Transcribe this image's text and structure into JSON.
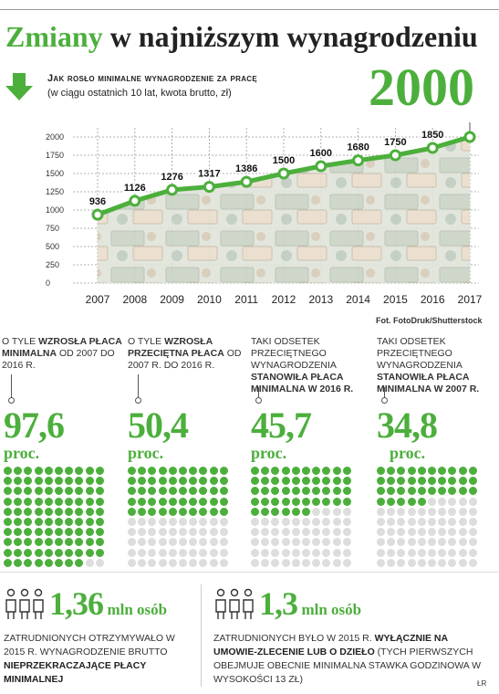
{
  "header": {
    "title_part1": "Zmiany",
    "title_part2": " w najniższym wynagrodzeniu",
    "subtitle": "Jak rosło minimalne wynagrodzenie za pracę",
    "subtitle2": "(w ciągu ostatnich 10 lat, kwota brutto, zł)",
    "highlight_value": "2000",
    "photo_credit": "Fot. FotoDruk/Shutterstock"
  },
  "colors": {
    "accent": "#4caf3c",
    "dot_off": "#dddddd",
    "text": "#222222"
  },
  "chart_data": [
    {
      "type": "line",
      "title": "Jak rosło minimalne wynagrodzenie za pracę",
      "subtitle": "(w ciągu ostatnich 10 lat, kwota brutto, zł)",
      "x": [
        "2007",
        "2008",
        "2009",
        "2010",
        "2011",
        "2012",
        "2013",
        "2014",
        "2015",
        "2016",
        "2017"
      ],
      "values": [
        936,
        1126,
        1276,
        1317,
        1386,
        1500,
        1600,
        1680,
        1750,
        1850,
        2000
      ],
      "labels": [
        "936",
        "1126",
        "1276",
        "1317",
        "1386",
        "1500",
        "1600",
        "1680",
        "1750",
        "1850",
        ""
      ],
      "yticks": [
        0,
        250,
        500,
        750,
        1000,
        1250,
        1500,
        1750,
        2000
      ],
      "ylim": [
        0,
        2000
      ],
      "grid": true
    },
    {
      "type": "waffle",
      "items": [
        {
          "value": 97.6,
          "of": 100
        },
        {
          "value": 50.4,
          "of": 100
        },
        {
          "value": 45.7,
          "of": 100
        },
        {
          "value": 34.8,
          "of": 100
        }
      ]
    }
  ],
  "stats": [
    {
      "desc_a": "O tyle ",
      "desc_b": "wzrosła płaca minimalna",
      "desc_c": " od 2007 do 2016 r.",
      "num": "97,6",
      "unit": "proc.",
      "filled": 97.6
    },
    {
      "desc_a": "O tyle ",
      "desc_b": "wzrosła przeciętna płaca",
      "desc_c": " od 2007 r. do 2016 r.",
      "num": "50,4",
      "unit": "proc.",
      "filled": 50.4
    },
    {
      "desc_a": "Taki odsetek przeciętnego wynagrodzenia ",
      "desc_b": "stanowiła płaca minimalna w 2016 r.",
      "desc_c": "",
      "num": "45,7",
      "unit": "proc.",
      "filled": 45.7
    },
    {
      "desc_a": "Taki odsetek przeciętnego wynagrodzenia ",
      "desc_b": "stanowiła płaca minimalna w 2007 r.",
      "desc_c": "",
      "num": "34,8",
      "unit": "proc.",
      "filled": 34.8
    }
  ],
  "bottom": [
    {
      "num": "1,36",
      "unit": "mln osób",
      "desc_a": "Zatrudnionych otrzymywało w 2015 r. wynagrodzenie brutto ",
      "desc_b": "nieprzekraczające płacy minimalnej",
      "desc_c": ""
    },
    {
      "num": "1,3",
      "unit": "mln osób",
      "desc_a": "Zatrudnionych było w 2015 r. ",
      "desc_b": "wyłącznie na umowie-zlecenie lub o dzieło",
      "desc_c": " (tych pierwszych obejmuje obecnie minimalna stawka godzinowa w wysokości 13 zł)"
    }
  ],
  "author": "ŁR"
}
